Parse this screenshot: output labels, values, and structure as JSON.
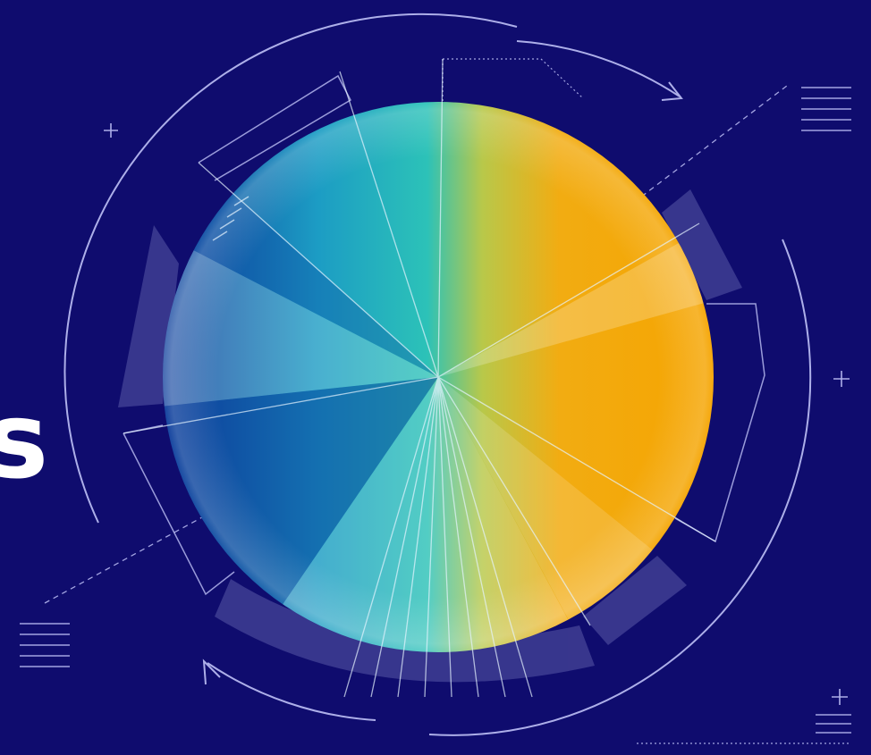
{
  "headline_fragment": "s",
  "colors": {
    "background": "#0f0c6e",
    "accent_warm": "#f5a800",
    "accent_teal": "#2cc2b8",
    "accent_blue": "#0e4aa8",
    "line": "#c9ccff",
    "band": "#4a4a9a"
  },
  "icons": [
    "plus-icon",
    "hamburger-lines-icon",
    "curved-arrow-icon"
  ]
}
